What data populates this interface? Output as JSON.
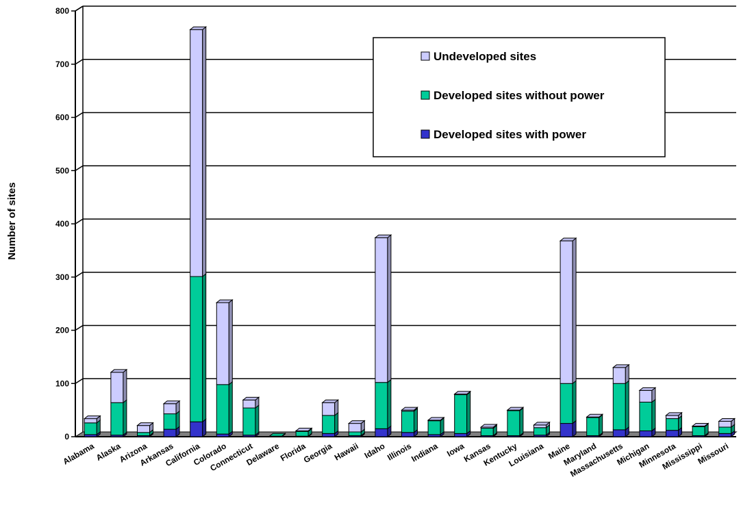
{
  "chart_data": {
    "type": "bar",
    "stacked": true,
    "ylabel": "Number of sites",
    "xlabel": "",
    "ylim": [
      0,
      800
    ],
    "yticks": [
      0,
      100,
      200,
      300,
      400,
      500,
      600,
      700,
      800
    ],
    "grid": true,
    "legend_position": "top-right",
    "categories": [
      "Alabama",
      "Alaska",
      "Arizona",
      "Arkansas",
      "California",
      "Colorado",
      "Connecticut",
      "Delaware",
      "Florida",
      "Georgia",
      "Hawaii",
      "Idaho",
      "Illinois",
      "Indiana",
      "Iowa",
      "Kansas",
      "Kentucky",
      "Louisiana",
      "Maine",
      "Maryland",
      "Massachusetts",
      "Michigan",
      "Minnesota",
      "Mississippi",
      "Missouri"
    ],
    "series": [
      {
        "name": "Developed sites with power",
        "color": "#3333cc",
        "values": [
          4,
          3,
          2,
          14,
          28,
          5,
          3,
          0,
          1,
          6,
          2,
          15,
          8,
          4,
          6,
          2,
          2,
          3,
          25,
          2,
          13,
          11,
          12,
          2,
          6
        ]
      },
      {
        "name": "Developed sites without power",
        "color": "#00cc99",
        "values": [
          22,
          61,
          6,
          29,
          273,
          93,
          51,
          1,
          9,
          34,
          7,
          87,
          40,
          26,
          73,
          14,
          47,
          14,
          75,
          34,
          87,
          54,
          22,
          17,
          12
        ]
      },
      {
        "name": "Undeveloped sites",
        "color": "#ccccff",
        "values": [
          8,
          57,
          13,
          19,
          464,
          154,
          15,
          0,
          1,
          24,
          16,
          272,
          2,
          1,
          1,
          2,
          1,
          5,
          268,
          1,
          30,
          22,
          6,
          1,
          11
        ]
      }
    ]
  }
}
